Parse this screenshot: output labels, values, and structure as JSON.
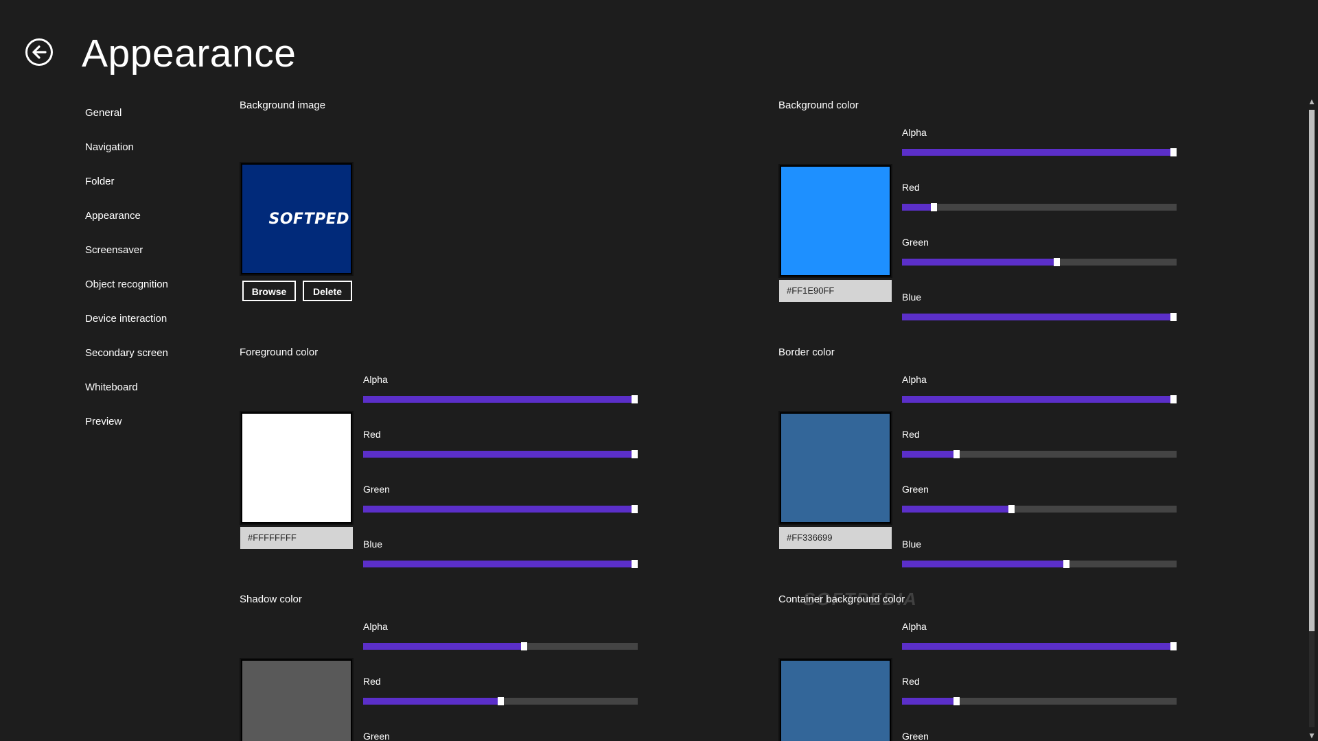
{
  "page": {
    "title": "Appearance",
    "back_icon": "arrow-left-circle-icon"
  },
  "nav": {
    "items": [
      {
        "label": "General"
      },
      {
        "label": "Navigation"
      },
      {
        "label": "Folder"
      },
      {
        "label": "Appearance"
      },
      {
        "label": "Screensaver"
      },
      {
        "label": "Object recognition"
      },
      {
        "label": "Device interaction"
      },
      {
        "label": "Secondary screen"
      },
      {
        "label": "Whiteboard"
      },
      {
        "label": "Preview"
      }
    ]
  },
  "sliders": {
    "alpha_label": "Alpha",
    "red_label": "Red",
    "green_label": "Green",
    "blue_label": "Blue"
  },
  "background_image": {
    "title": "Background image",
    "preview_text": "SOFTPED",
    "preview_color": "#012a7a",
    "browse_label": "Browse",
    "delete_label": "Delete"
  },
  "background_color": {
    "title": "Background color",
    "hex": "#FF1E90FF",
    "color": "#1e90ff",
    "alpha": 255,
    "red": 30,
    "green": 144,
    "blue": 255
  },
  "foreground_color": {
    "title": "Foreground color",
    "hex": "#FFFFFFFF",
    "color": "#ffffff",
    "alpha": 255,
    "red": 255,
    "green": 255,
    "blue": 255
  },
  "border_color": {
    "title": "Border color",
    "hex": "#FF336699",
    "color": "#336699",
    "alpha": 255,
    "red": 51,
    "green": 102,
    "blue": 153
  },
  "shadow_color": {
    "title": "Shadow color",
    "color": "#595959",
    "alpha": 150,
    "red": 128
  },
  "container_background_color": {
    "title": "Container background color",
    "color": "#336699",
    "alpha": 255,
    "red": 51
  },
  "theme": {
    "background": "#1d1d1d",
    "accent": "#5b2fc9",
    "track": "#444444"
  },
  "watermark": "SOFTPEDIA"
}
